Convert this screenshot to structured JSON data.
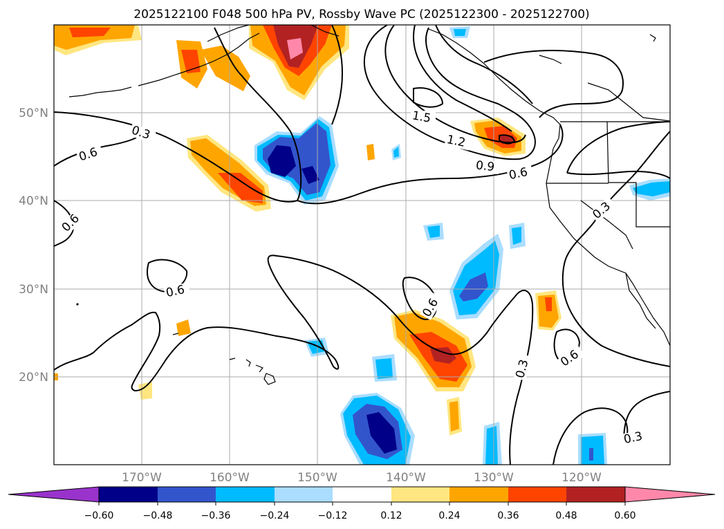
{
  "title": "2025122100 F048 500 hPa PV, Rossby Wave PC (2025122300 - 2025122700)",
  "lat_ticks": [
    "50°N",
    "40°N",
    "30°N",
    "20°N"
  ],
  "lon_ticks": [
    "170°W",
    "160°W",
    "150°W",
    "140°W",
    "130°W",
    "120°W"
  ],
  "contour_labels": [
    "0.3",
    "0.6",
    "1.5",
    "1.2",
    "0.9",
    "0.6",
    "0.6",
    "0.3",
    "0.6",
    "0.6",
    "0.3",
    "0.6",
    "0.3"
  ],
  "colorbar": {
    "ticks": [
      "−0.60",
      "−0.48",
      "−0.36",
      "−0.24",
      "−0.12",
      "0.12",
      "0.24",
      "0.36",
      "0.48",
      "0.60"
    ],
    "colors": [
      "#9933cc",
      "#000088",
      "#3355cc",
      "#00bbff",
      "#aaddff",
      "#ffffff",
      "#ffe680",
      "#ffa500",
      "#ff4400",
      "#b22222",
      "#ff88aa"
    ]
  },
  "map_extent": {
    "lon": [
      -180,
      -110
    ],
    "lat": [
      10,
      60
    ]
  },
  "axis_color": "#808080"
}
